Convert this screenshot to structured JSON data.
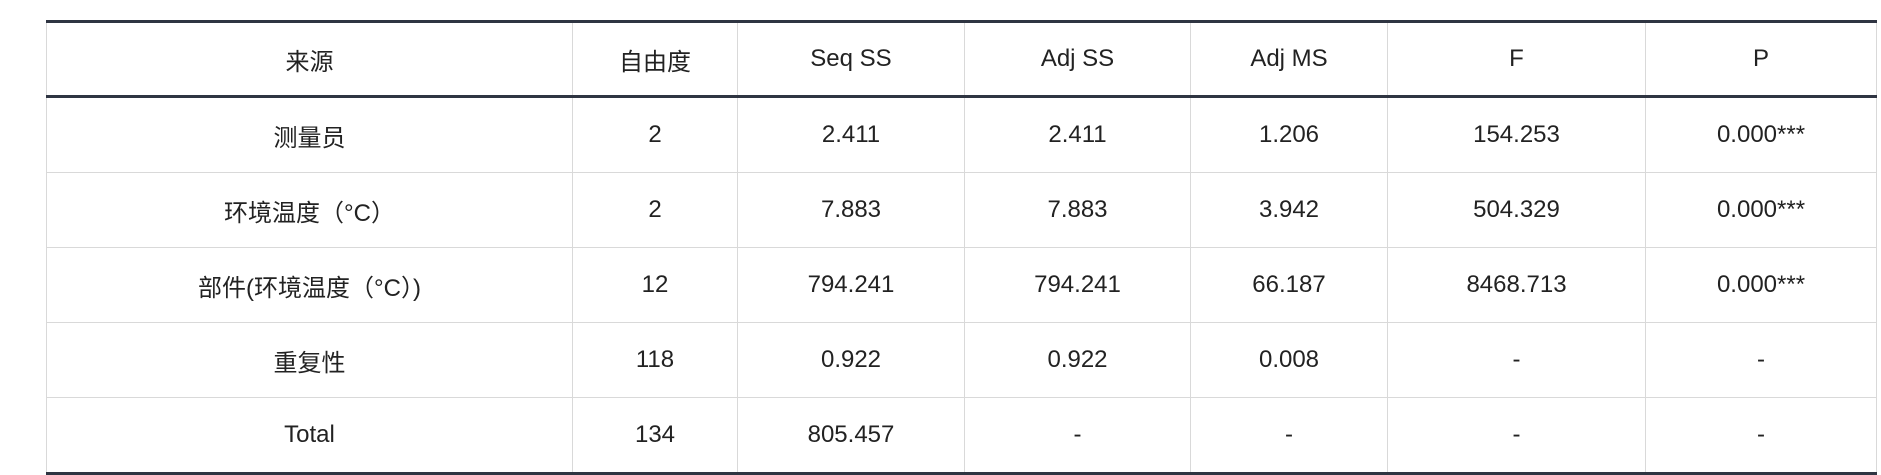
{
  "table": {
    "header": [
      "来源",
      "自由度",
      "Seq SS",
      "Adj SS",
      "Adj MS",
      "F",
      "P"
    ],
    "rows": [
      [
        "测量员",
        "2",
        "2.411",
        "2.411",
        "1.206",
        "154.253",
        "0.000***"
      ],
      [
        "环境温度（°C）",
        "2",
        "7.883",
        "7.883",
        "3.942",
        "504.329",
        "0.000***"
      ],
      [
        "部件(环境温度（°C）)",
        "12",
        "794.241",
        "794.241",
        "66.187",
        "8468.713",
        "0.000***"
      ],
      [
        "重复性",
        "118",
        "0.922",
        "0.922",
        "0.008",
        "-",
        "-"
      ],
      [
        "Total",
        "134",
        "805.457",
        "-",
        "-",
        "-",
        "-"
      ]
    ]
  }
}
